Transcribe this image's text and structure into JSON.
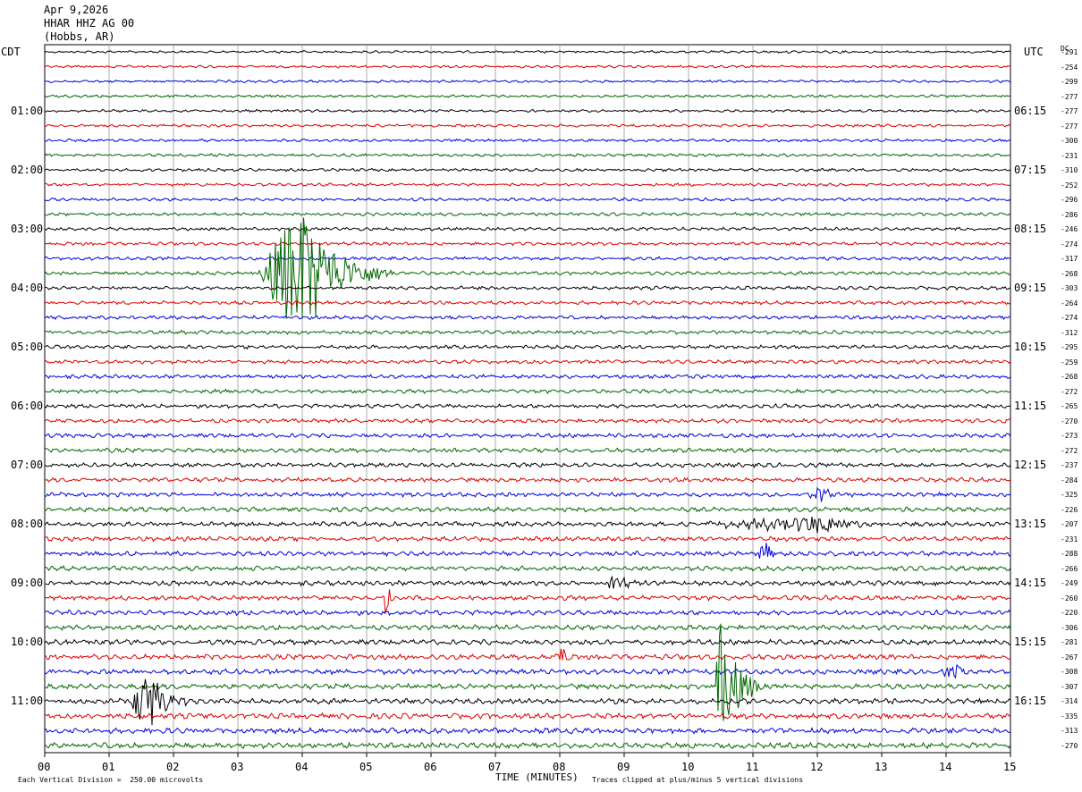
{
  "header": {
    "date": "Apr 9,2026",
    "station": "HHAR HHZ AG 00",
    "location": "(Hobbs, AR)"
  },
  "left_tz": "CDT",
  "right_tz": "UTC",
  "dc_label": "DC",
  "footer": {
    "scale_note": "Each Vertical Division =  250.00 microvolts",
    "x_axis_title": "TIME (MINUTES)",
    "clip_note": "Traces clipped at plus/minus 5 vertical divisions"
  },
  "chart_data": {
    "type": "line",
    "title": "HHAR HHZ AG 00",
    "xlabel": "TIME (MINUTES)",
    "xlim": [
      0,
      15
    ],
    "x_ticks": [
      "00",
      "01",
      "02",
      "03",
      "04",
      "05",
      "06",
      "07",
      "08",
      "09",
      "10",
      "11",
      "12",
      "13",
      "14",
      "15"
    ],
    "trace_count": 48,
    "trace_colors": [
      "#000000",
      "#dd0000",
      "#0000dd",
      "#006600"
    ],
    "left_hour_labels": [
      {
        "trace": 4,
        "label": "01:00"
      },
      {
        "trace": 8,
        "label": "02:00"
      },
      {
        "trace": 12,
        "label": "03:00"
      },
      {
        "trace": 16,
        "label": "04:00"
      },
      {
        "trace": 20,
        "label": "05:00"
      },
      {
        "trace": 24,
        "label": "06:00"
      },
      {
        "trace": 28,
        "label": "07:00"
      },
      {
        "trace": 32,
        "label": "08:00"
      },
      {
        "trace": 36,
        "label": "09:00"
      },
      {
        "trace": 40,
        "label": "10:00"
      },
      {
        "trace": 44,
        "label": "11:00"
      }
    ],
    "right_hour_labels": [
      {
        "trace": 4,
        "label": "06:15"
      },
      {
        "trace": 8,
        "label": "07:15"
      },
      {
        "trace": 12,
        "label": "08:15"
      },
      {
        "trace": 16,
        "label": "09:15"
      },
      {
        "trace": 20,
        "label": "10:15"
      },
      {
        "trace": 24,
        "label": "11:15"
      },
      {
        "trace": 28,
        "label": "12:15"
      },
      {
        "trace": 32,
        "label": "13:15"
      },
      {
        "trace": 36,
        "label": "14:15"
      },
      {
        "trace": 40,
        "label": "15:15"
      },
      {
        "trace": 44,
        "label": "16:15"
      }
    ],
    "dc_offsets": [
      "-291",
      "-254",
      "-299",
      "-277",
      "-277",
      "-277",
      "-300",
      "-231",
      "-310",
      "-252",
      "-296",
      "-286",
      "-246",
      "-274",
      "-317",
      "-268",
      "-303",
      "-264",
      "-274",
      "-312",
      "-295",
      "-259",
      "-268",
      "-272",
      "-265",
      "-270",
      "-273",
      "-272",
      "-237",
      "-284",
      "-325",
      "-226",
      "-207",
      "-231",
      "-288",
      "-266",
      "-249",
      "-260",
      "-220",
      "-306",
      "-281",
      "-267",
      "-308",
      "-307",
      "-314",
      "-335",
      "-313",
      "-270"
    ],
    "events": [
      {
        "trace": 15,
        "start_min": 3.3,
        "end_min": 5.4,
        "peak_min": 3.95,
        "amp_div": 5.0,
        "color": "#006600"
      },
      {
        "trace": 43,
        "start_min": 10.4,
        "end_min": 11.2,
        "peak_min": 10.5,
        "amp_div": 4.5,
        "color": "#006600"
      },
      {
        "trace": 44,
        "start_min": 1.3,
        "end_min": 2.2,
        "peak_min": 1.6,
        "amp_div": 2.5,
        "color": "#000000"
      },
      {
        "trace": 32,
        "start_min": 9.9,
        "end_min": 13.0,
        "peak_min": 12.2,
        "amp_div": 0.6,
        "color": "#000000"
      },
      {
        "trace": 34,
        "start_min": 11.0,
        "end_min": 11.4,
        "peak_min": 11.2,
        "amp_div": 0.8,
        "color": "#0000dd"
      },
      {
        "trace": 36,
        "start_min": 8.6,
        "end_min": 9.4,
        "peak_min": 8.9,
        "amp_div": 0.7,
        "color": "#000000"
      },
      {
        "trace": 37,
        "start_min": 5.2,
        "end_min": 5.5,
        "peak_min": 5.3,
        "amp_div": 1.2,
        "color": "#dd0000"
      },
      {
        "trace": 30,
        "start_min": 11.8,
        "end_min": 12.4,
        "peak_min": 12.1,
        "amp_div": 0.6,
        "color": "#0000dd"
      },
      {
        "trace": 41,
        "start_min": 7.9,
        "end_min": 8.2,
        "peak_min": 8.05,
        "amp_div": 0.8,
        "color": "#dd0000"
      },
      {
        "trace": 42,
        "start_min": 13.9,
        "end_min": 14.4,
        "peak_min": 14.2,
        "amp_div": 0.7,
        "color": "#0000dd"
      }
    ]
  }
}
